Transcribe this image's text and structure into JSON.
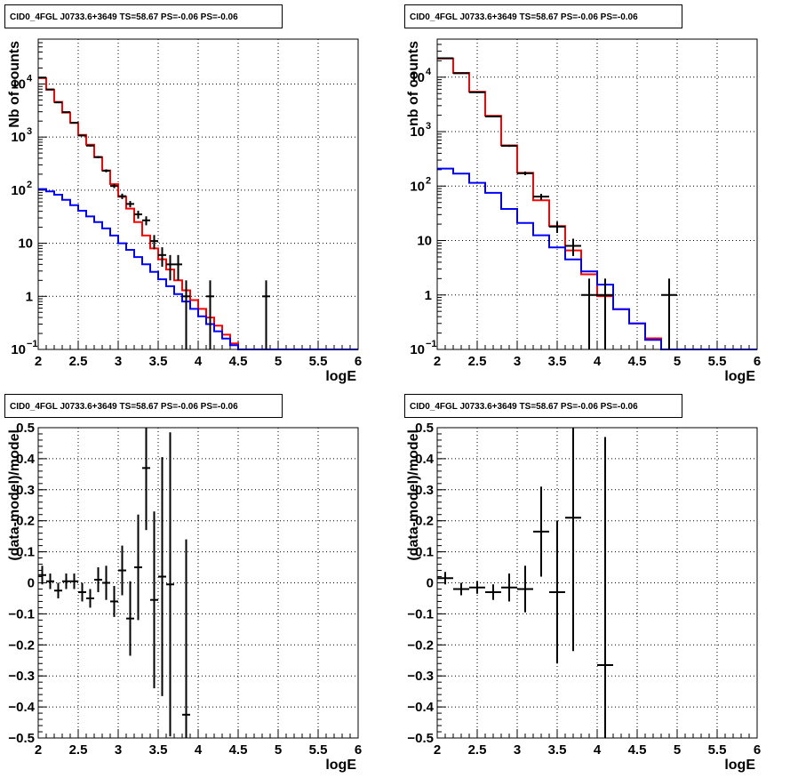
{
  "chart_data": [
    {
      "type": "histogram",
      "title": "CID0_4FGL J0733.6+3649 TS=58.67 PS=-0.06 PS=-0.06",
      "xlabel": "logE",
      "ylabel": "Nb of counts",
      "xlim": [
        2,
        6
      ],
      "ylim": [
        0.1,
        70000
      ],
      "yscale": "log",
      "grid": true,
      "x_ticks": [
        "2",
        "2.5",
        "3",
        "3.5",
        "4",
        "4.5",
        "5",
        "5.5",
        "6"
      ],
      "y_ticks": [
        "10⁻¹",
        "1",
        "10",
        "10²",
        "10³",
        "10⁴"
      ],
      "bin_edges": [
        2.0,
        2.1,
        2.2,
        2.3,
        2.4,
        2.5,
        2.6,
        2.7,
        2.8,
        2.9,
        3.0,
        3.1,
        3.2,
        3.3,
        3.4,
        3.5,
        3.6,
        3.7,
        3.8,
        3.9,
        4.0,
        4.1,
        4.2,
        4.3,
        4.4,
        4.5,
        4.6,
        4.7,
        4.8,
        4.9,
        5.0,
        5.1,
        5.2,
        5.3,
        5.4,
        5.5,
        5.6,
        5.7,
        5.8,
        5.9,
        6.0
      ],
      "series": [
        {
          "color": "#ff0000",
          "values": [
            13000,
            7800,
            4600,
            2900,
            1850,
            1100,
            720,
            420,
            235,
            130,
            75,
            45,
            25,
            14,
            8,
            5,
            3.2,
            2.0,
            1.3,
            0.85,
            0.58,
            0.4,
            0.28,
            0.19,
            0.13,
            0.1,
            0.1,
            0.1,
            0.1,
            0.1,
            0.1,
            0.1,
            0.1,
            0.1,
            0.1,
            0.1,
            0.1,
            0.1,
            0.1,
            0.1
          ]
        },
        {
          "color": "#0000ff",
          "values": [
            105,
            95,
            82,
            66,
            52,
            41,
            32,
            25,
            19,
            14,
            10,
            7.5,
            5.5,
            4.0,
            2.9,
            2.1,
            1.55,
            1.1,
            0.8,
            0.58,
            0.42,
            0.3,
            0.22,
            0.16,
            0.12,
            0.1,
            0.1,
            0.1,
            0.1,
            0.1,
            0.1,
            0.1,
            0.1,
            0.1,
            0.1,
            0.1,
            0.1,
            0.1,
            0.1,
            0.1
          ]
        }
      ],
      "data_points": [
        {
          "x": 2.05,
          "y": 13200,
          "yerr": 115
        },
        {
          "x": 2.15,
          "y": 7900,
          "yerr": 89
        },
        {
          "x": 2.25,
          "y": 4500,
          "yerr": 67
        },
        {
          "x": 2.35,
          "y": 2950,
          "yerr": 54
        },
        {
          "x": 2.45,
          "y": 1860,
          "yerr": 43
        },
        {
          "x": 2.55,
          "y": 1070,
          "yerr": 33
        },
        {
          "x": 2.65,
          "y": 690,
          "yerr": 26
        },
        {
          "x": 2.75,
          "y": 420,
          "yerr": 20
        },
        {
          "x": 2.85,
          "y": 232,
          "yerr": 15
        },
        {
          "x": 2.95,
          "y": 120,
          "yerr": 11
        },
        {
          "x": 3.05,
          "y": 77,
          "yerr": 9
        },
        {
          "x": 3.15,
          "y": 55,
          "yerr": 7.4
        },
        {
          "x": 3.25,
          "y": 35,
          "yerr": 5.9
        },
        {
          "x": 3.35,
          "y": 27,
          "yerr": 5.2
        },
        {
          "x": 3.45,
          "y": 11,
          "yerr": 3.3
        },
        {
          "x": 3.55,
          "y": 6,
          "yerr": 2.4
        },
        {
          "x": 3.65,
          "y": 4,
          "yerr": 2.0
        },
        {
          "x": 3.75,
          "y": 4,
          "yerr": 2.0
        },
        {
          "x": 3.85,
          "y": 1,
          "yerr": 1.0
        },
        {
          "x": 4.15,
          "y": 1,
          "yerr": 1.0
        },
        {
          "x": 4.85,
          "y": 1,
          "yerr": 1.0
        }
      ]
    },
    {
      "type": "histogram",
      "title": "CID0_4FGL J0733.6+3649 TS=58.67 PS=-0.06 PS=-0.06",
      "xlabel": "logE",
      "ylabel": "nb of counts",
      "xlim": [
        2,
        6
      ],
      "ylim": [
        0.1,
        50000
      ],
      "yscale": "log",
      "grid": true,
      "x_ticks": [
        "2",
        "2.5",
        "3",
        "3.5",
        "4",
        "4.5",
        "5",
        "5.5",
        "6"
      ],
      "y_ticks": [
        "10⁻¹",
        "1",
        "10",
        "10²",
        "10³",
        "10⁴"
      ],
      "bin_edges": [
        2.0,
        2.2,
        2.4,
        2.6,
        2.8,
        3.0,
        3.2,
        3.4,
        3.6,
        3.8,
        4.0,
        4.2,
        4.4,
        4.6,
        4.8,
        5.0,
        5.2,
        5.4,
        5.6,
        5.8,
        6.0
      ],
      "series": [
        {
          "color": "#ff0000",
          "values": [
            22000,
            12000,
            5400,
            1950,
            560,
            175,
            55,
            18.5,
            6.6,
            2.4,
            0.95,
            0.55,
            0.3,
            0.16,
            0.1,
            0.1,
            0.1,
            0.1,
            0.1,
            0.1
          ]
        },
        {
          "color": "#0000ff",
          "values": [
            210,
            170,
            115,
            75,
            38,
            21,
            12.5,
            7.5,
            4.5,
            2.7,
            1.55,
            0.55,
            0.3,
            0.15,
            0.1,
            0.1,
            0.1,
            0.1,
            0.1,
            0.1
          ]
        }
      ],
      "data_points": [
        {
          "x": 2.1,
          "y": 22300,
          "yerr": 149
        },
        {
          "x": 2.3,
          "y": 11800,
          "yerr": 109
        },
        {
          "x": 2.5,
          "y": 5300,
          "yerr": 73
        },
        {
          "x": 2.7,
          "y": 1900,
          "yerr": 44
        },
        {
          "x": 2.9,
          "y": 548,
          "yerr": 23
        },
        {
          "x": 3.1,
          "y": 172,
          "yerr": 13
        },
        {
          "x": 3.3,
          "y": 64,
          "yerr": 8
        },
        {
          "x": 3.5,
          "y": 18,
          "yerr": 4.2
        },
        {
          "x": 3.7,
          "y": 8,
          "yerr": 2.8
        },
        {
          "x": 3.9,
          "y": 1,
          "yerr": 1.0
        },
        {
          "x": 4.1,
          "y": 1,
          "yerr": 1.0
        },
        {
          "x": 4.9,
          "y": 1,
          "yerr": 1.0
        }
      ]
    },
    {
      "type": "scatter",
      "title": "CID0_4FGL J0733.6+3649 TS=58.67 PS=-0.06 PS=-0.06",
      "xlabel": "logE",
      "ylabel": "(data-model)/model",
      "xlim": [
        2,
        6
      ],
      "ylim": [
        -0.5,
        0.5
      ],
      "grid": true,
      "x_ticks": [
        "2",
        "2.5",
        "3",
        "3.5",
        "4",
        "4.5",
        "5",
        "5.5",
        "6"
      ],
      "y_ticks": [
        "−0.5",
        "−0.4",
        "−0.3",
        "−0.2",
        "−0.1",
        "0",
        "0.1",
        "0.2",
        "0.3",
        "0.4",
        "0.5"
      ],
      "points": [
        {
          "x": 2.05,
          "y": 0.025,
          "xerr": 0.05,
          "yerr": 0.03
        },
        {
          "x": 2.15,
          "y": 0.005,
          "xerr": 0.05,
          "yerr": 0.025
        },
        {
          "x": 2.25,
          "y": -0.025,
          "xerr": 0.05,
          "yerr": 0.025
        },
        {
          "x": 2.35,
          "y": 0.005,
          "xerr": 0.05,
          "yerr": 0.025
        },
        {
          "x": 2.45,
          "y": 0.005,
          "xerr": 0.05,
          "yerr": 0.025
        },
        {
          "x": 2.55,
          "y": -0.03,
          "xerr": 0.05,
          "yerr": 0.03
        },
        {
          "x": 2.65,
          "y": -0.05,
          "xerr": 0.05,
          "yerr": 0.03
        },
        {
          "x": 2.75,
          "y": 0.01,
          "xerr": 0.05,
          "yerr": 0.04
        },
        {
          "x": 2.85,
          "y": 0.0,
          "xerr": 0.05,
          "yerr": 0.055
        },
        {
          "x": 2.95,
          "y": -0.06,
          "xerr": 0.05,
          "yerr": 0.05
        },
        {
          "x": 3.05,
          "y": 0.04,
          "xerr": 0.05,
          "yerr": 0.08
        },
        {
          "x": 3.15,
          "y": -0.115,
          "xerr": 0.05,
          "yerr": 0.12
        },
        {
          "x": 3.25,
          "y": 0.05,
          "xerr": 0.05,
          "yerr": 0.17
        },
        {
          "x": 3.35,
          "y": 0.37,
          "xerr": 0.05,
          "yerr": 0.2
        },
        {
          "x": 3.45,
          "y": -0.055,
          "xerr": 0.05,
          "yerr": 0.285
        },
        {
          "x": 3.55,
          "y": 0.02,
          "xerr": 0.05,
          "yerr": 0.385
        },
        {
          "x": 3.65,
          "y": -0.005,
          "xerr": 0.05,
          "yerr": 0.49
        },
        {
          "x": 3.85,
          "y": -0.425,
          "xerr": 0.05,
          "yerr": 0.565
        }
      ]
    },
    {
      "type": "scatter",
      "title": "CID0_4FGL J0733.6+3649 TS=58.67 PS=-0.06 PS=-0.06",
      "xlabel": "logE",
      "ylabel": "(data-model)/model",
      "xlim": [
        2,
        6
      ],
      "ylim": [
        -0.5,
        0.5
      ],
      "grid": true,
      "x_ticks": [
        "2",
        "2.5",
        "3",
        "3.5",
        "4",
        "4.5",
        "5",
        "5.5",
        "6"
      ],
      "y_ticks": [
        "−0.5",
        "−0.4",
        "−0.3",
        "−0.2",
        "−0.1",
        "0",
        "0.1",
        "0.2",
        "0.3",
        "0.4",
        "0.5"
      ],
      "points": [
        {
          "x": 2.1,
          "y": 0.015,
          "xerr": 0.1,
          "yerr": 0.02
        },
        {
          "x": 2.3,
          "y": -0.02,
          "xerr": 0.1,
          "yerr": 0.02
        },
        {
          "x": 2.5,
          "y": -0.015,
          "xerr": 0.1,
          "yerr": 0.02
        },
        {
          "x": 2.7,
          "y": -0.03,
          "xerr": 0.1,
          "yerr": 0.025
        },
        {
          "x": 2.9,
          "y": -0.015,
          "xerr": 0.1,
          "yerr": 0.045
        },
        {
          "x": 3.1,
          "y": -0.02,
          "xerr": 0.1,
          "yerr": 0.075
        },
        {
          "x": 3.3,
          "y": 0.165,
          "xerr": 0.1,
          "yerr": 0.145
        },
        {
          "x": 3.5,
          "y": -0.03,
          "xerr": 0.1,
          "yerr": 0.23
        },
        {
          "x": 3.7,
          "y": 0.21,
          "xerr": 0.1,
          "yerr": 0.43
        },
        {
          "x": 4.1,
          "y": -0.265,
          "xerr": 0.1,
          "yerr": 0.735
        }
      ]
    }
  ]
}
